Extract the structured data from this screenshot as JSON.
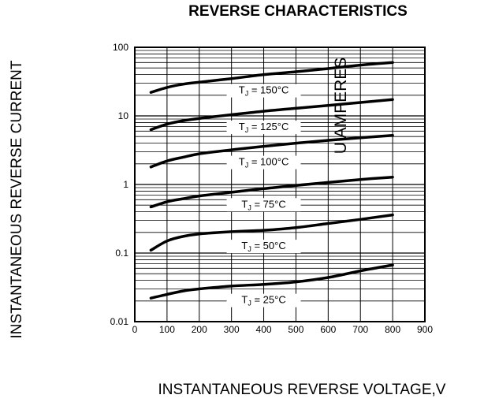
{
  "chart_data": {
    "type": "line",
    "title": "REVERSE CHARACTERISTICS",
    "xlabel": "INSTANTANEOUS REVERSE VOLTAGE,V",
    "ylabel": "INSTANTANEOUS REVERSE CURRENT",
    "yunit_label": "U AMPERES",
    "xlim": [
      0,
      900
    ],
    "ylim": [
      0.01,
      100
    ],
    "yscale": "log",
    "grid": true,
    "x_ticks": [
      "0",
      "100",
      "200",
      "300",
      "400",
      "500",
      "600",
      "700",
      "800",
      "900"
    ],
    "y_ticks": [
      "0.01",
      "0.1",
      "1",
      "10",
      "100"
    ],
    "series": [
      {
        "name": "T_J = 150°C",
        "label_sub": "J",
        "label_rest": " = 150°C",
        "x": [
          50,
          100,
          150,
          200,
          300,
          400,
          500,
          600,
          700,
          800
        ],
        "y": [
          22,
          26,
          29,
          31,
          35,
          40,
          44,
          49,
          55,
          60
        ]
      },
      {
        "name": "T_J = 125°C",
        "label_sub": "J",
        "label_rest": " = 125°C",
        "x": [
          50,
          100,
          150,
          200,
          300,
          400,
          500,
          600,
          700,
          800
        ],
        "y": [
          6.3,
          7.6,
          8.5,
          9.2,
          10.4,
          11.7,
          12.9,
          14.2,
          15.7,
          17.3
        ]
      },
      {
        "name": "T_J = 100°C",
        "label_sub": "J",
        "label_rest": " = 100°C",
        "x": [
          50,
          100,
          150,
          200,
          300,
          400,
          500,
          600,
          700,
          800
        ],
        "y": [
          1.8,
          2.2,
          2.5,
          2.8,
          3.2,
          3.6,
          4.0,
          4.4,
          4.8,
          5.2
        ]
      },
      {
        "name": "T_J = 75°C",
        "label_sub": "J",
        "label_rest": " = 75°C",
        "x": [
          50,
          100,
          150,
          200,
          300,
          400,
          500,
          600,
          700,
          800
        ],
        "y": [
          0.47,
          0.56,
          0.62,
          0.68,
          0.77,
          0.87,
          0.97,
          1.07,
          1.18,
          1.28
        ]
      },
      {
        "name": "T_J = 50°C",
        "label_sub": "J",
        "label_rest": " = 50°C",
        "x": [
          50,
          100,
          150,
          200,
          300,
          400,
          500,
          600,
          700,
          800
        ],
        "y": [
          0.11,
          0.15,
          0.175,
          0.19,
          0.205,
          0.215,
          0.235,
          0.27,
          0.31,
          0.36
        ]
      },
      {
        "name": "T_J = 25°C",
        "label_sub": "J",
        "label_rest": " = 25°C",
        "x": [
          50,
          100,
          150,
          200,
          300,
          400,
          500,
          600,
          700,
          800
        ],
        "y": [
          0.022,
          0.025,
          0.028,
          0.03,
          0.033,
          0.035,
          0.038,
          0.044,
          0.055,
          0.067
        ]
      }
    ]
  }
}
